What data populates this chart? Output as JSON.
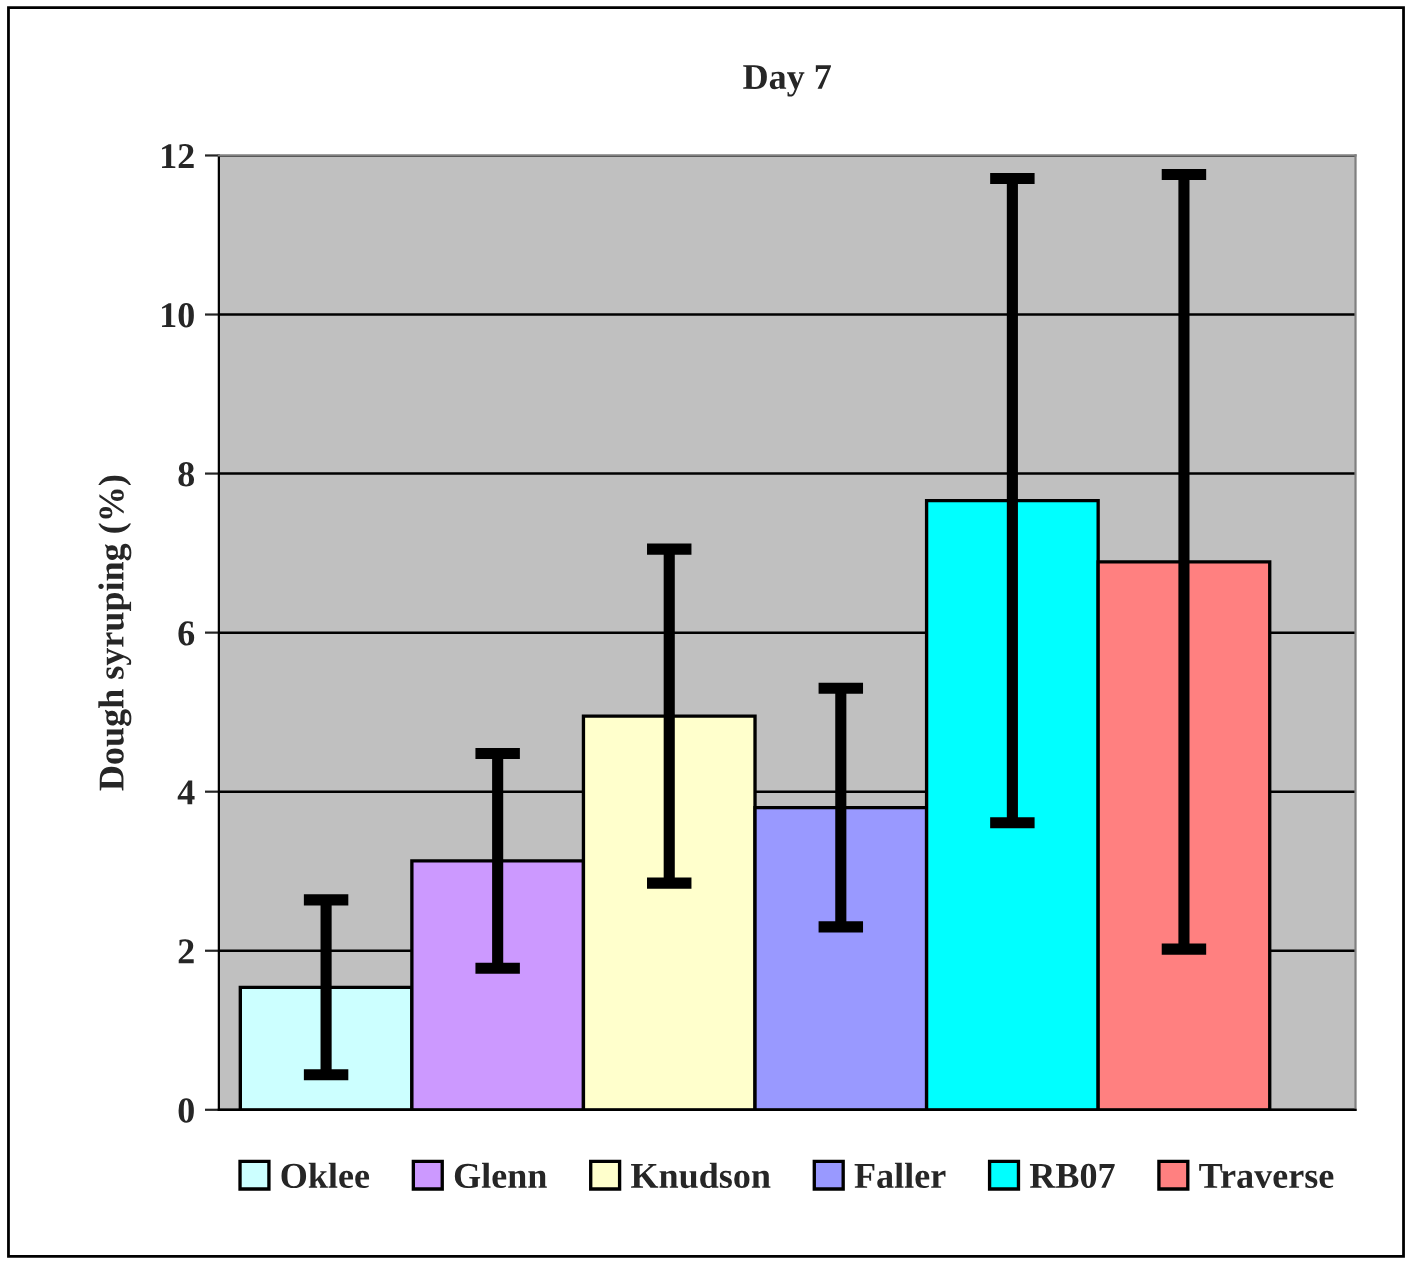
{
  "chart_data": {
    "type": "bar",
    "title": "Day 7",
    "ylabel": "Dough syruping (%)",
    "categories": [
      null
    ],
    "series": [
      {
        "name": "Oklee",
        "color": "#ccffff",
        "values": [
          1.54
        ],
        "errors": [
          1.1
        ]
      },
      {
        "name": "Glenn",
        "color": "#cc99ff",
        "values": [
          3.13
        ],
        "errors": [
          1.35
        ]
      },
      {
        "name": "Knudson",
        "color": "#ffffcc",
        "values": [
          4.95
        ],
        "errors": [
          2.1
        ]
      },
      {
        "name": "Faller",
        "color": "#9999ff",
        "values": [
          3.8
        ],
        "errors": [
          1.5
        ]
      },
      {
        "name": "RB07",
        "color": "#00ffff",
        "values": [
          7.66
        ],
        "errors": [
          4.05
        ]
      },
      {
        "name": "Traverse",
        "color": "#ff8080",
        "values": [
          6.89
        ],
        "errors": [
          4.87
        ]
      }
    ],
    "ylim": [
      0,
      12
    ],
    "yticks": [
      0,
      2,
      4,
      6,
      8,
      10,
      12
    ],
    "grid": "y",
    "legend": "bottom",
    "tick_labels": "y"
  }
}
